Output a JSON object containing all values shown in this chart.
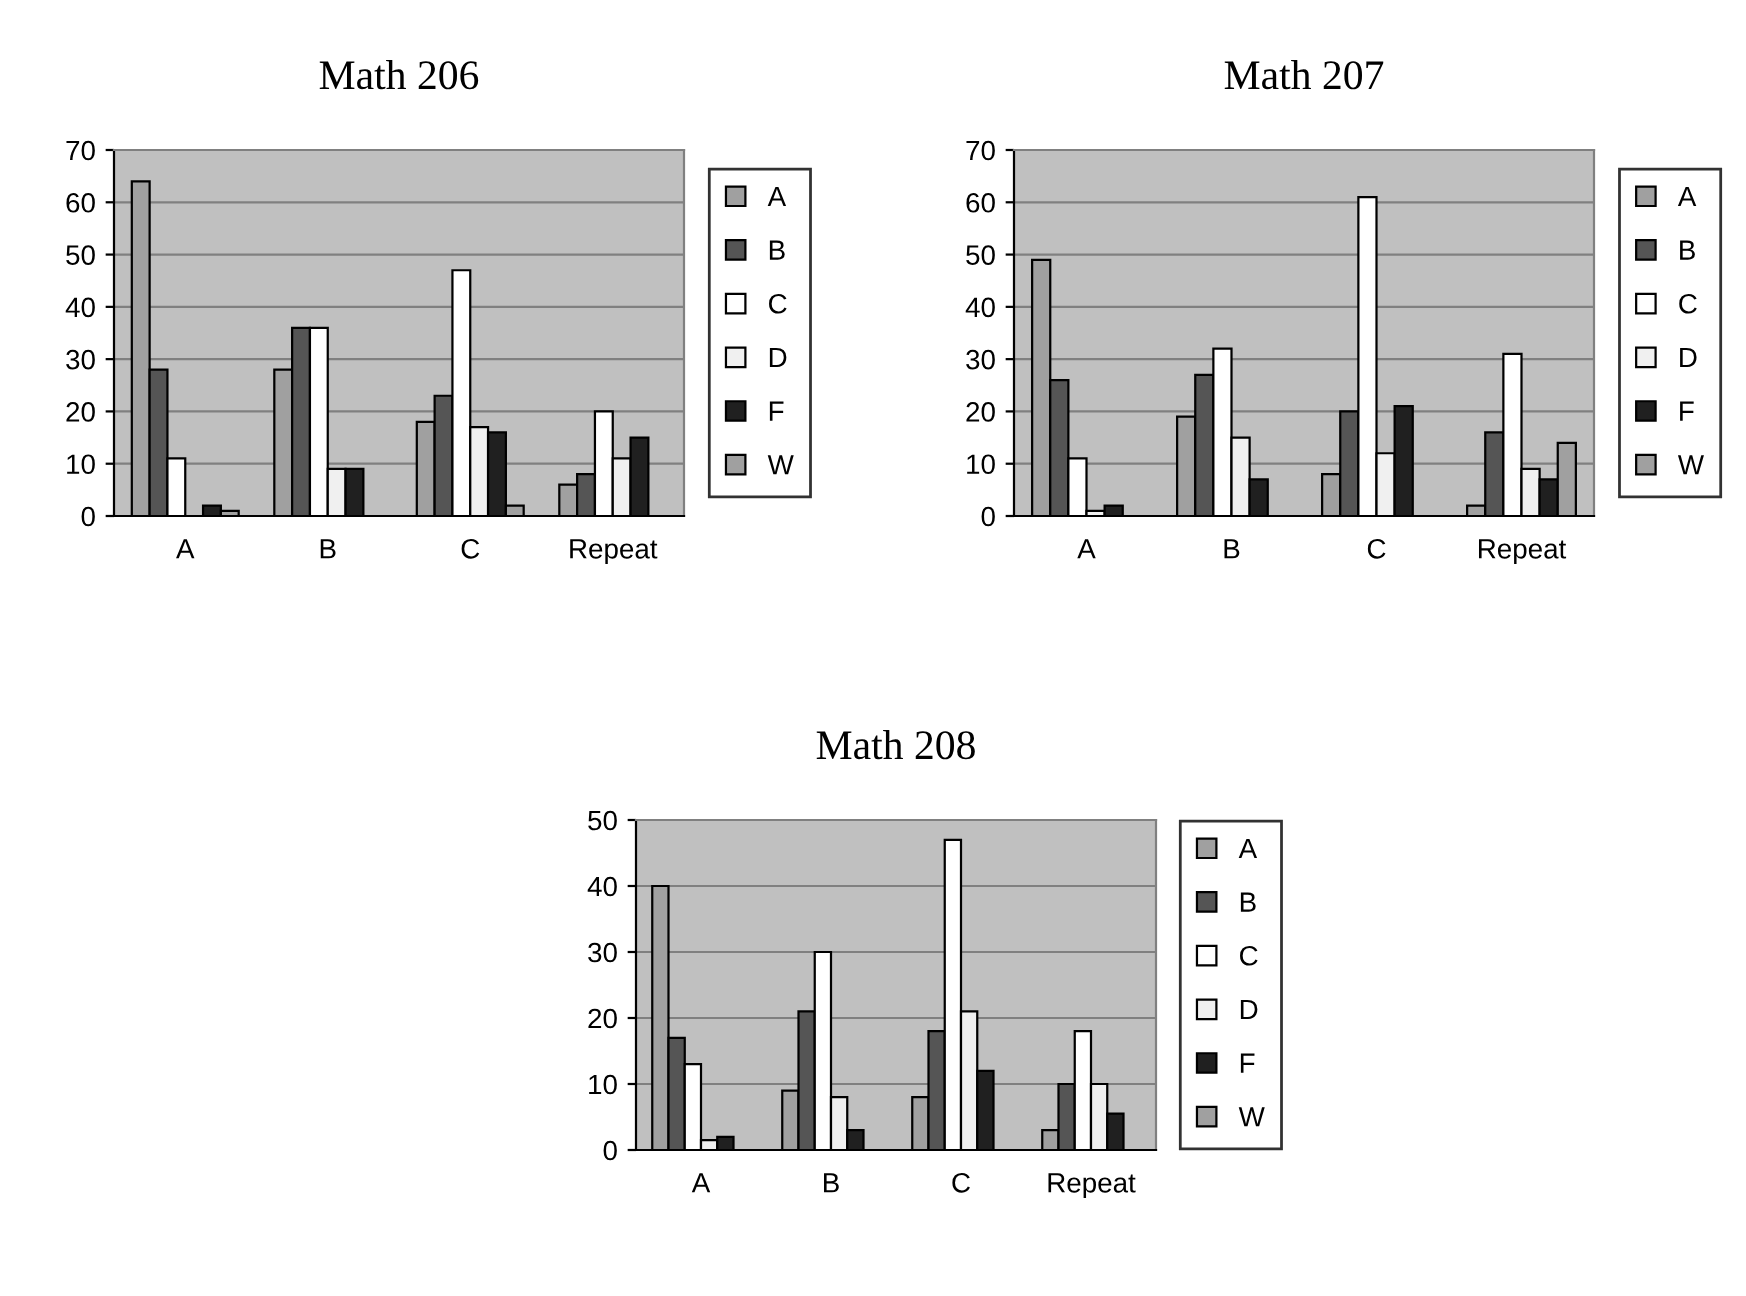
{
  "chart_data": [
    {
      "type": "bar",
      "title": "Math 206",
      "categories": [
        "A",
        "B",
        "C",
        "Repeat"
      ],
      "ylim": [
        0,
        70
      ],
      "yticks": [
        0,
        10,
        20,
        30,
        40,
        50,
        60,
        70
      ],
      "grid": "y",
      "legend": "right",
      "series": [
        {
          "name": "A",
          "color": "#a0a0a0",
          "values": [
            64,
            28,
            18,
            6
          ]
        },
        {
          "name": "B",
          "color": "#555555",
          "values": [
            28,
            36,
            23,
            8
          ]
        },
        {
          "name": "C",
          "color": "#ffffff",
          "values": [
            11,
            36,
            47,
            20
          ]
        },
        {
          "name": "D",
          "color": "#f0f0f0",
          "values": [
            0,
            9,
            17,
            11
          ]
        },
        {
          "name": "F",
          "color": "#202020",
          "values": [
            2,
            9,
            16,
            15
          ]
        },
        {
          "name": "W",
          "color": "#a0a0a0",
          "values": [
            1,
            0,
            2,
            0
          ]
        }
      ]
    },
    {
      "type": "bar",
      "title": "Math 207",
      "categories": [
        "A",
        "B",
        "C",
        "Repeat"
      ],
      "ylim": [
        0,
        70
      ],
      "yticks": [
        0,
        10,
        20,
        30,
        40,
        50,
        60,
        70
      ],
      "grid": "y",
      "legend": "right",
      "series": [
        {
          "name": "A",
          "color": "#a0a0a0",
          "values": [
            49,
            19,
            8,
            2
          ]
        },
        {
          "name": "B",
          "color": "#555555",
          "values": [
            26,
            27,
            20,
            16
          ]
        },
        {
          "name": "C",
          "color": "#ffffff",
          "values": [
            11,
            32,
            61,
            31
          ]
        },
        {
          "name": "D",
          "color": "#f0f0f0",
          "values": [
            1,
            15,
            12,
            9
          ]
        },
        {
          "name": "F",
          "color": "#202020",
          "values": [
            2,
            7,
            21,
            7
          ]
        },
        {
          "name": "W",
          "color": "#a0a0a0",
          "values": [
            0,
            0,
            0,
            14
          ]
        }
      ]
    },
    {
      "type": "bar",
      "title": "Math 208",
      "categories": [
        "A",
        "B",
        "C",
        "Repeat"
      ],
      "ylim": [
        0,
        50
      ],
      "yticks": [
        0,
        10,
        20,
        30,
        40,
        50
      ],
      "grid": "y",
      "legend": "right",
      "series": [
        {
          "name": "A",
          "color": "#a0a0a0",
          "values": [
            40,
            9,
            8,
            3
          ]
        },
        {
          "name": "B",
          "color": "#555555",
          "values": [
            17,
            21,
            18,
            10
          ]
        },
        {
          "name": "C",
          "color": "#ffffff",
          "values": [
            13,
            30,
            47,
            18
          ]
        },
        {
          "name": "D",
          "color": "#f0f0f0",
          "values": [
            1.5,
            8,
            21,
            10
          ]
        },
        {
          "name": "F",
          "color": "#202020",
          "values": [
            2,
            3,
            12,
            5.5
          ]
        },
        {
          "name": "W",
          "color": "#a0a0a0",
          "values": [
            0,
            0,
            0,
            0
          ]
        }
      ]
    }
  ]
}
